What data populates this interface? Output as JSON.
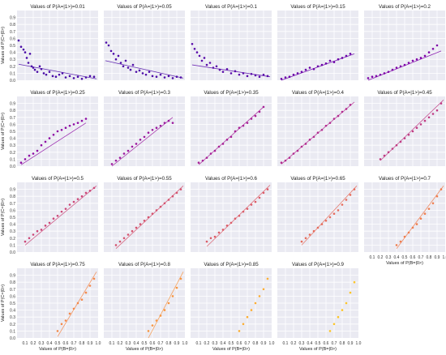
{
  "chart_data": {
    "type": "scatter",
    "layout": {
      "rows": 4,
      "cols": 5
    },
    "xlabel": "Values of P(B=|0>)",
    "ylabel": "Values of P(C=|0>)",
    "xlim": [
      0,
      1
    ],
    "ylim": [
      0,
      1
    ],
    "x_ticks": [
      "0.1",
      "0.2",
      "0.3",
      "0.4",
      "0.5",
      "0.6",
      "0.7",
      "0.8",
      "0.9",
      "1.0"
    ],
    "y_ticks": [
      "0.0",
      "0.1",
      "0.2",
      "0.3",
      "0.4",
      "0.5",
      "0.6",
      "0.7",
      "0.8",
      "0.9"
    ],
    "grid": true,
    "colors": [
      "#4a0ca7",
      "#4f0ea8",
      "#5a0daa",
      "#6a00a8",
      "#7e03a8",
      "#8e0ca4",
      "#9c179e",
      "#a72197",
      "#b22b8f",
      "#c03a83",
      "#cc4778",
      "#d5536f",
      "#db5c68",
      "#e66c5c",
      "#ef7e50",
      "#f48849",
      "#f89540",
      "#fdae32",
      "#fdc527",
      "#f6e01f"
    ],
    "panels": [
      {
        "title": "Values of P(A=|1>)=0.01",
        "x": [
          0.02,
          0.05,
          0.08,
          0.1,
          0.12,
          0.14,
          0.16,
          0.18,
          0.2,
          0.22,
          0.25,
          0.28,
          0.3,
          0.33,
          0.36,
          0.4,
          0.44,
          0.48,
          0.52,
          0.56,
          0.6,
          0.65,
          0.7,
          0.75,
          0.8,
          0.85,
          0.9,
          0.95
        ],
        "y": [
          0.57,
          0.48,
          0.44,
          0.4,
          0.32,
          0.25,
          0.38,
          0.2,
          0.18,
          0.15,
          0.12,
          0.2,
          0.16,
          0.1,
          0.08,
          0.12,
          0.06,
          0.05,
          0.08,
          0.1,
          0.04,
          0.06,
          0.03,
          0.05,
          0.02,
          0.04,
          0.06,
          0.05
        ],
        "trend": [
          [
            0.02,
            0.23
          ],
          [
            0.98,
            0.02
          ]
        ]
      },
      {
        "title": "Values of P(A=|1>)=0.05",
        "x": [
          0.03,
          0.06,
          0.09,
          0.12,
          0.15,
          0.18,
          0.21,
          0.24,
          0.27,
          0.3,
          0.33,
          0.36,
          0.4,
          0.44,
          0.48,
          0.52,
          0.56,
          0.6,
          0.65,
          0.7,
          0.75,
          0.8,
          0.85,
          0.9,
          0.95
        ],
        "y": [
          0.54,
          0.5,
          0.42,
          0.38,
          0.3,
          0.35,
          0.25,
          0.2,
          0.28,
          0.18,
          0.15,
          0.22,
          0.12,
          0.14,
          0.1,
          0.08,
          0.12,
          0.06,
          0.05,
          0.08,
          0.04,
          0.06,
          0.03,
          0.05,
          0.04
        ],
        "trend": [
          [
            0.02,
            0.28
          ],
          [
            0.98,
            0.03
          ]
        ]
      },
      {
        "title": "Values of P(A=|1>)=0.1",
        "x": [
          0.02,
          0.05,
          0.08,
          0.11,
          0.14,
          0.17,
          0.2,
          0.24,
          0.28,
          0.32,
          0.36,
          0.4,
          0.45,
          0.5,
          0.55,
          0.6,
          0.65,
          0.7,
          0.75,
          0.8,
          0.85,
          0.9,
          0.95
        ],
        "y": [
          0.52,
          0.45,
          0.4,
          0.35,
          0.28,
          0.32,
          0.22,
          0.25,
          0.18,
          0.2,
          0.15,
          0.12,
          0.16,
          0.1,
          0.13,
          0.08,
          0.1,
          0.06,
          0.09,
          0.07,
          0.05,
          0.08,
          0.06
        ],
        "trend": [
          [
            0.02,
            0.22
          ],
          [
            0.98,
            0.05
          ]
        ]
      },
      {
        "title": "Values of P(A=|1>)=0.15",
        "x": [
          0.05,
          0.1,
          0.15,
          0.2,
          0.25,
          0.3,
          0.35,
          0.4,
          0.45,
          0.5,
          0.55,
          0.6,
          0.65,
          0.7,
          0.75,
          0.8,
          0.85,
          0.9
        ],
        "y": [
          0.02,
          0.04,
          0.05,
          0.08,
          0.1,
          0.12,
          0.15,
          0.18,
          0.16,
          0.2,
          0.22,
          0.24,
          0.28,
          0.26,
          0.3,
          0.32,
          0.35,
          0.38
        ],
        "trend": [
          [
            0.05,
            0.0
          ],
          [
            0.95,
            0.38
          ]
        ]
      },
      {
        "title": "Values of P(A=|1>)=0.2",
        "x": [
          0.05,
          0.1,
          0.15,
          0.2,
          0.25,
          0.3,
          0.35,
          0.4,
          0.45,
          0.5,
          0.55,
          0.6,
          0.65,
          0.7,
          0.75,
          0.8,
          0.85,
          0.9
        ],
        "y": [
          0.03,
          0.05,
          0.06,
          0.08,
          0.1,
          0.12,
          0.15,
          0.18,
          0.2,
          0.22,
          0.25,
          0.28,
          0.3,
          0.32,
          0.35,
          0.4,
          0.45,
          0.5
        ],
        "trend": [
          [
            0.05,
            0.0
          ],
          [
            0.95,
            0.42
          ]
        ]
      },
      {
        "title": "Values of P(A=|1>)=0.25",
        "x": [
          0.05,
          0.1,
          0.15,
          0.2,
          0.25,
          0.3,
          0.35,
          0.4,
          0.45,
          0.5,
          0.55,
          0.6,
          0.65,
          0.7,
          0.75,
          0.8,
          0.85
        ],
        "y": [
          0.05,
          0.1,
          0.15,
          0.18,
          0.22,
          0.3,
          0.35,
          0.4,
          0.45,
          0.5,
          0.52,
          0.55,
          0.58,
          0.6,
          0.62,
          0.65,
          0.68
        ],
        "trend": [
          [
            0.05,
            0.02
          ],
          [
            0.85,
            0.62
          ]
        ]
      },
      {
        "title": "Values of P(A=|1>)=0.3",
        "x": [
          0.1,
          0.15,
          0.2,
          0.25,
          0.3,
          0.35,
          0.4,
          0.45,
          0.5,
          0.55,
          0.6,
          0.65,
          0.7,
          0.75,
          0.8,
          0.85
        ],
        "y": [
          0.03,
          0.08,
          0.12,
          0.18,
          0.22,
          0.28,
          0.32,
          0.38,
          0.42,
          0.48,
          0.52,
          0.55,
          0.58,
          0.62,
          0.65,
          0.62
        ],
        "trend": [
          [
            0.1,
            0.0
          ],
          [
            0.85,
            0.7
          ]
        ]
      },
      {
        "title": "Values of P(A=|1>)=0.35",
        "x": [
          0.1,
          0.15,
          0.2,
          0.25,
          0.3,
          0.35,
          0.4,
          0.45,
          0.5,
          0.55,
          0.6,
          0.65,
          0.7,
          0.75,
          0.8,
          0.85,
          0.9
        ],
        "y": [
          0.05,
          0.08,
          0.12,
          0.18,
          0.22,
          0.28,
          0.32,
          0.38,
          0.42,
          0.5,
          0.55,
          0.58,
          0.62,
          0.68,
          0.72,
          0.78,
          0.85
        ],
        "trend": [
          [
            0.1,
            0.02
          ],
          [
            0.9,
            0.85
          ]
        ]
      },
      {
        "title": "Values of P(A=|1>)=0.4",
        "x": [
          0.05,
          0.1,
          0.15,
          0.2,
          0.25,
          0.3,
          0.35,
          0.4,
          0.45,
          0.5,
          0.55,
          0.6,
          0.65,
          0.7,
          0.75,
          0.8,
          0.85,
          0.9
        ],
        "y": [
          0.05,
          0.08,
          0.12,
          0.18,
          0.22,
          0.28,
          0.32,
          0.38,
          0.42,
          0.48,
          0.52,
          0.58,
          0.62,
          0.68,
          0.72,
          0.78,
          0.82,
          0.88
        ],
        "trend": [
          [
            0.05,
            0.03
          ],
          [
            0.95,
            0.92
          ]
        ]
      },
      {
        "title": "Values of P(A=|1>)=0.45",
        "x": [
          0.2,
          0.25,
          0.3,
          0.35,
          0.4,
          0.45,
          0.5,
          0.55,
          0.6,
          0.65,
          0.7,
          0.75,
          0.8,
          0.85,
          0.9,
          0.95
        ],
        "y": [
          0.1,
          0.15,
          0.2,
          0.25,
          0.3,
          0.35,
          0.4,
          0.45,
          0.5,
          0.55,
          0.6,
          0.65,
          0.7,
          0.75,
          0.8,
          0.9
        ],
        "trend": [
          [
            0.2,
            0.08
          ],
          [
            0.98,
            0.95
          ]
        ]
      },
      {
        "title": "Values of P(A=|1>)=0.5",
        "x": [
          0.1,
          0.15,
          0.2,
          0.25,
          0.3,
          0.35,
          0.4,
          0.45,
          0.5,
          0.55,
          0.6,
          0.65,
          0.7,
          0.75,
          0.8,
          0.85,
          0.9,
          0.95
        ],
        "y": [
          0.15,
          0.2,
          0.25,
          0.3,
          0.32,
          0.38,
          0.42,
          0.48,
          0.52,
          0.58,
          0.62,
          0.68,
          0.72,
          0.76,
          0.8,
          0.85,
          0.88,
          0.92
        ],
        "trend": [
          [
            0.1,
            0.1
          ],
          [
            0.98,
            0.95
          ]
        ]
      },
      {
        "title": "Values of P(A=|1>)=0.55",
        "x": [
          0.15,
          0.2,
          0.25,
          0.3,
          0.35,
          0.4,
          0.45,
          0.5,
          0.55,
          0.6,
          0.65,
          0.7,
          0.75,
          0.8,
          0.85,
          0.9,
          0.95
        ],
        "y": [
          0.1,
          0.15,
          0.2,
          0.25,
          0.3,
          0.35,
          0.4,
          0.45,
          0.5,
          0.55,
          0.6,
          0.65,
          0.7,
          0.75,
          0.8,
          0.85,
          0.9
        ],
        "trend": [
          [
            0.15,
            0.05
          ],
          [
            0.98,
            0.95
          ]
        ]
      },
      {
        "title": "Values of P(A=|1>)=0.6",
        "x": [
          0.2,
          0.25,
          0.3,
          0.35,
          0.4,
          0.45,
          0.5,
          0.55,
          0.6,
          0.65,
          0.7,
          0.75,
          0.8,
          0.85,
          0.9,
          0.95
        ],
        "y": [
          0.15,
          0.2,
          0.22,
          0.28,
          0.32,
          0.38,
          0.42,
          0.48,
          0.52,
          0.58,
          0.62,
          0.68,
          0.72,
          0.78,
          0.85,
          0.9
        ],
        "trend": [
          [
            0.2,
            0.08
          ],
          [
            0.98,
            0.96
          ]
        ]
      },
      {
        "title": "Values of P(A=|1>)=0.65",
        "x": [
          0.3,
          0.35,
          0.4,
          0.45,
          0.5,
          0.55,
          0.6,
          0.65,
          0.7,
          0.75,
          0.8,
          0.85,
          0.9,
          0.95
        ],
        "y": [
          0.15,
          0.2,
          0.25,
          0.3,
          0.35,
          0.4,
          0.45,
          0.5,
          0.55,
          0.6,
          0.68,
          0.75,
          0.82,
          0.9
        ],
        "trend": [
          [
            0.3,
            0.1
          ],
          [
            0.98,
            0.95
          ]
        ]
      },
      {
        "title": "Values of P(A=|1>)=0.7",
        "x": [
          0.4,
          0.45,
          0.5,
          0.55,
          0.6,
          0.65,
          0.7,
          0.75,
          0.8,
          0.85,
          0.9,
          0.95
        ],
        "y": [
          0.1,
          0.15,
          0.22,
          0.28,
          0.35,
          0.4,
          0.48,
          0.55,
          0.62,
          0.7,
          0.8,
          0.9
        ],
        "trend": [
          [
            0.4,
            0.05
          ],
          [
            0.98,
            0.95
          ]
        ]
      },
      {
        "title": "Values of P(A=|1>)=0.75",
        "x": [
          0.5,
          0.55,
          0.6,
          0.65,
          0.7,
          0.75,
          0.8,
          0.85,
          0.9,
          0.95
        ],
        "y": [
          0.1,
          0.2,
          0.25,
          0.35,
          0.42,
          0.5,
          0.55,
          0.65,
          0.75,
          0.85
        ],
        "trend": [
          [
            0.5,
            0.02
          ],
          [
            0.98,
            0.95
          ]
        ]
      },
      {
        "title": "Values of P(A=|1>)=0.8",
        "x": [
          0.55,
          0.6,
          0.65,
          0.7,
          0.75,
          0.8,
          0.85,
          0.9,
          0.95
        ],
        "y": [
          0.1,
          0.18,
          0.25,
          0.32,
          0.4,
          0.5,
          0.6,
          0.72,
          0.85
        ],
        "trend": [
          [
            0.55,
            0.0
          ],
          [
            0.98,
            0.95
          ]
        ]
      },
      {
        "title": "Values of P(A=|1>)=0.85",
        "x": [
          0.6,
          0.65,
          0.7,
          0.75,
          0.8,
          0.85,
          0.9,
          0.95
        ],
        "y": [
          0.1,
          0.2,
          0.3,
          0.4,
          0.5,
          0.6,
          0.7,
          0.85
        ],
        "trend": null
      },
      {
        "title": "Values of P(A=|1>)=0.9",
        "x": [
          0.65,
          0.7,
          0.75,
          0.8,
          0.85,
          0.9,
          0.95
        ],
        "y": [
          0.1,
          0.2,
          0.3,
          0.4,
          0.5,
          0.65,
          0.8
        ],
        "trend": null
      }
    ]
  }
}
